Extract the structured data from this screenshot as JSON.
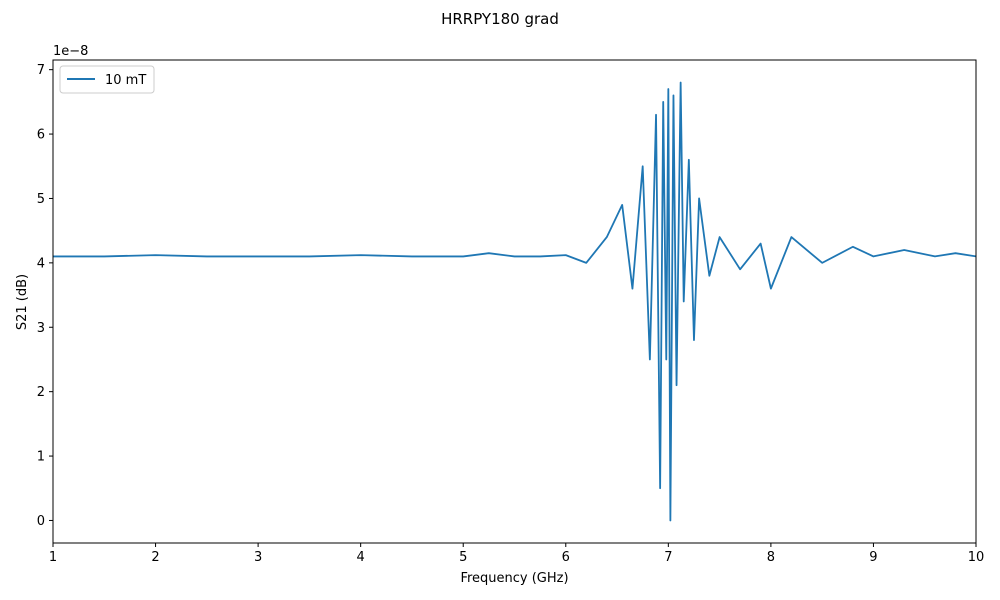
{
  "chart_data": {
    "type": "line",
    "title": "HRRPY180 grad",
    "xlabel": "Frequency (GHz)",
    "ylabel": "S21 (dB)",
    "y_offset_label": "1e−8",
    "xlim": [
      1,
      10
    ],
    "ylim": [
      -0.35,
      7.15
    ],
    "x_ticks": [
      1,
      2,
      3,
      4,
      5,
      6,
      7,
      8,
      9,
      10
    ],
    "y_ticks": [
      0,
      1,
      2,
      3,
      4,
      5,
      6,
      7
    ],
    "x_tick_labels": [
      "1",
      "2",
      "3",
      "4",
      "5",
      "6",
      "7",
      "8",
      "9",
      "10"
    ],
    "y_tick_labels": [
      "0",
      "1",
      "2",
      "3",
      "4",
      "5",
      "6",
      "7"
    ],
    "grid": false,
    "legend_position": "top-left",
    "series": [
      {
        "name": "10 mT",
        "color": "#1f77b4",
        "x": [
          1.0,
          1.5,
          2.0,
          2.5,
          3.0,
          3.5,
          4.0,
          4.5,
          5.0,
          5.25,
          5.5,
          5.75,
          6.0,
          6.2,
          6.4,
          6.55,
          6.65,
          6.75,
          6.82,
          6.88,
          6.92,
          6.95,
          6.98,
          7.0,
          7.02,
          7.05,
          7.08,
          7.12,
          7.15,
          7.2,
          7.25,
          7.3,
          7.4,
          7.5,
          7.7,
          7.9,
          8.0,
          8.2,
          8.5,
          8.8,
          9.0,
          9.3,
          9.6,
          9.8,
          10.0
        ],
        "y": [
          4.1,
          4.1,
          4.12,
          4.1,
          4.1,
          4.1,
          4.12,
          4.1,
          4.1,
          4.15,
          4.1,
          4.1,
          4.12,
          4.0,
          4.4,
          4.9,
          3.6,
          5.5,
          2.5,
          6.3,
          0.5,
          6.5,
          2.5,
          6.7,
          0.0,
          6.6,
          2.1,
          6.8,
          3.4,
          5.6,
          2.8,
          5.0,
          3.8,
          4.4,
          3.9,
          4.3,
          3.6,
          4.4,
          4.0,
          4.25,
          4.1,
          4.2,
          4.1,
          4.15,
          4.1
        ]
      }
    ]
  }
}
